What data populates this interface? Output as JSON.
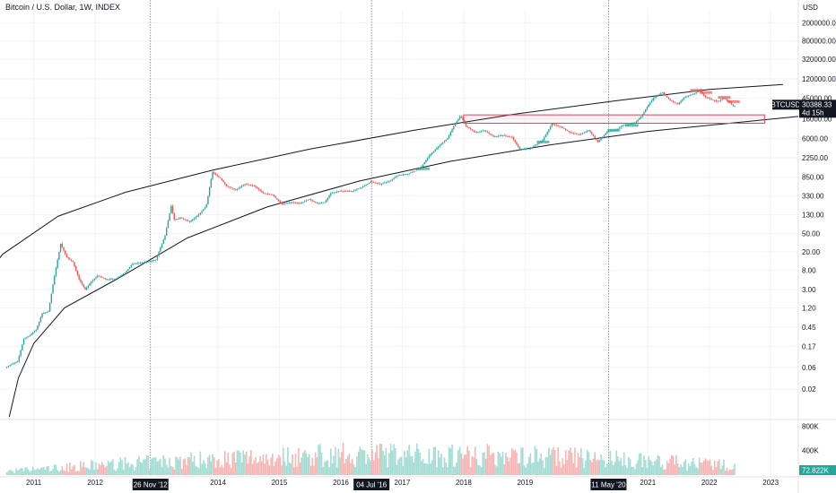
{
  "header": {
    "title": "Bitcoin / U.S. Dollar, 1W, INDEX",
    "currency": "USD"
  },
  "chart_data": {
    "type": "candlestick",
    "symbol": "BTCUSD",
    "interval": "1W",
    "y_scale": "log",
    "ylim": [
      0.005,
      4000000
    ],
    "y_ticks": [
      "2000000.00",
      "800000.00",
      "320000.00",
      "120000.00",
      "45000.00",
      "16000.00",
      "6000.00",
      "2250.00",
      "850.00",
      "330.00",
      "130.00",
      "50.00",
      "20.00",
      "8.00",
      "3.00",
      "1.20",
      "0.45",
      "0.17",
      "0.06",
      "0.02"
    ],
    "y_tick_values": [
      2000000,
      800000,
      320000,
      120000,
      45000,
      16000,
      6000,
      2250,
      850,
      330,
      130,
      50,
      20,
      8,
      3,
      1.2,
      0.45,
      0.17,
      0.06,
      0.02
    ],
    "x_ticks": [
      "2011",
      "2012",
      "2014",
      "2015",
      "2016",
      "2017",
      "2018",
      "2019",
      "2021",
      "2022",
      "2023"
    ],
    "x_tick_values": [
      2011.0,
      2012.0,
      2014.0,
      2015.0,
      2016.0,
      2017.0,
      2018.0,
      2019.0,
      2021.0,
      2022.0,
      2023.0
    ],
    "xlim": [
      2010.45,
      2023.45
    ],
    "date_markers": [
      {
        "label": "26 Nov '12",
        "x": 2012.9
      },
      {
        "label": "04 Jul '16",
        "x": 2016.5
      },
      {
        "label": "11 May '20",
        "x": 2020.36
      }
    ],
    "last_price": {
      "value": "30388.33",
      "countdown": "4d 15h"
    },
    "price_path": [
      [
        2010.55,
        0.06
      ],
      [
        2010.65,
        0.07
      ],
      [
        2010.75,
        0.08
      ],
      [
        2010.85,
        0.25
      ],
      [
        2010.95,
        0.3
      ],
      [
        2011.05,
        0.4
      ],
      [
        2011.15,
        0.9
      ],
      [
        2011.25,
        1.0
      ],
      [
        2011.35,
        6.0
      ],
      [
        2011.45,
        30.0
      ],
      [
        2011.55,
        15.0
      ],
      [
        2011.65,
        12.0
      ],
      [
        2011.75,
        5.0
      ],
      [
        2011.85,
        3.0
      ],
      [
        2011.95,
        4.5
      ],
      [
        2012.05,
        6.0
      ],
      [
        2012.2,
        5.0
      ],
      [
        2012.35,
        5.2
      ],
      [
        2012.5,
        7.0
      ],
      [
        2012.62,
        11.0
      ],
      [
        2012.75,
        11.5
      ],
      [
        2012.85,
        12.0
      ],
      [
        2013.0,
        13.5
      ],
      [
        2013.15,
        45.0
      ],
      [
        2013.25,
        200.0
      ],
      [
        2013.3,
        100.0
      ],
      [
        2013.4,
        110.0
      ],
      [
        2013.55,
        90.0
      ],
      [
        2013.7,
        130.0
      ],
      [
        2013.82,
        200.0
      ],
      [
        2013.92,
        1100.0
      ],
      [
        2014.05,
        800.0
      ],
      [
        2014.15,
        550.0
      ],
      [
        2014.3,
        450.0
      ],
      [
        2014.45,
        600.0
      ],
      [
        2014.6,
        550.0
      ],
      [
        2014.75,
        380.0
      ],
      [
        2014.9,
        350.0
      ],
      [
        2015.05,
        220.0
      ],
      [
        2015.2,
        240.0
      ],
      [
        2015.35,
        230.0
      ],
      [
        2015.5,
        280.0
      ],
      [
        2015.62,
        230.0
      ],
      [
        2015.75,
        240.0
      ],
      [
        2015.85,
        380.0
      ],
      [
        2016.0,
        430.0
      ],
      [
        2016.2,
        420.0
      ],
      [
        2016.4,
        550.0
      ],
      [
        2016.5,
        680.0
      ],
      [
        2016.65,
        600.0
      ],
      [
        2016.8,
        700.0
      ],
      [
        2016.95,
        950.0
      ],
      [
        2017.1,
        1000.0
      ],
      [
        2017.3,
        1300.0
      ],
      [
        2017.45,
        2500.0
      ],
      [
        2017.6,
        4000.0
      ],
      [
        2017.75,
        6000.0
      ],
      [
        2017.85,
        11000.0
      ],
      [
        2017.96,
        19000.0
      ],
      [
        2018.05,
        11000.0
      ],
      [
        2018.2,
        8000.0
      ],
      [
        2018.35,
        9000.0
      ],
      [
        2018.5,
        6500.0
      ],
      [
        2018.65,
        7000.0
      ],
      [
        2018.8,
        6300.0
      ],
      [
        2018.92,
        3500.0
      ],
      [
        2019.1,
        3600.0
      ],
      [
        2019.3,
        5500.0
      ],
      [
        2019.45,
        12500.0
      ],
      [
        2019.6,
        10500.0
      ],
      [
        2019.75,
        8000.0
      ],
      [
        2019.9,
        7200.0
      ],
      [
        2020.05,
        9000.0
      ],
      [
        2020.2,
        5000.0
      ],
      [
        2020.36,
        8700.0
      ],
      [
        2020.5,
        9200.0
      ],
      [
        2020.6,
        11500.0
      ],
      [
        2020.8,
        13000.0
      ],
      [
        2020.92,
        19000.0
      ],
      [
        2021.0,
        29000.0
      ],
      [
        2021.1,
        45000.0
      ],
      [
        2021.25,
        60000.0
      ],
      [
        2021.38,
        40000.0
      ],
      [
        2021.5,
        33000.0
      ],
      [
        2021.6,
        47000.0
      ],
      [
        2021.75,
        55000.0
      ],
      [
        2021.85,
        67000.0
      ],
      [
        2021.95,
        48000.0
      ],
      [
        2022.05,
        42000.0
      ],
      [
        2022.15,
        38000.0
      ],
      [
        2022.25,
        45000.0
      ],
      [
        2022.33,
        38000.0
      ],
      [
        2022.4,
        30388.33
      ]
    ],
    "annotations": {
      "upper_curve": [
        [
          2009.3,
          0.08
        ],
        [
          2009.9,
          2.0
        ],
        [
          2010.5,
          18.0
        ],
        [
          2011.4,
          120.0
        ],
        [
          2012.5,
          400.0
        ],
        [
          2013.9,
          1200.0
        ],
        [
          2015.5,
          3500.0
        ],
        [
          2017.2,
          9000.0
        ],
        [
          2018.8,
          20000.0
        ],
        [
          2020.5,
          40000.0
        ],
        [
          2022.0,
          70000.0
        ],
        [
          2023.2,
          90000.0
        ]
      ],
      "lower_curve": [
        [
          2010.6,
          0.005
        ],
        [
          2010.75,
          0.035
        ],
        [
          2011.0,
          0.2
        ],
        [
          2011.5,
          1.2
        ],
        [
          2012.4,
          5.5
        ],
        [
          2013.5,
          40.0
        ],
        [
          2014.8,
          190.0
        ],
        [
          2016.3,
          700.0
        ],
        [
          2017.8,
          1900.0
        ],
        [
          2019.4,
          4300.0
        ],
        [
          2021.0,
          8500.0
        ],
        [
          2023.45,
          18000.0
        ]
      ],
      "resistance_box": {
        "x": [
          2018.0,
          2022.9
        ],
        "y": [
          12800.0,
          19500.0
        ]
      }
    },
    "volume": {
      "y_ticks": [
        "800K",
        "400K"
      ],
      "y_tick_values": [
        800000,
        400000
      ],
      "last_value": "72.822K",
      "ylim": [
        0,
        880000
      ]
    },
    "colors": {
      "up": "#26a69a",
      "down": "#ef5350",
      "up_volume": "#a5dcd4",
      "down_volume": "#f5b7b5",
      "box": "#e8425a",
      "green_label": "#26a69a",
      "dark": "#131722",
      "bg": "#ffffff"
    }
  }
}
